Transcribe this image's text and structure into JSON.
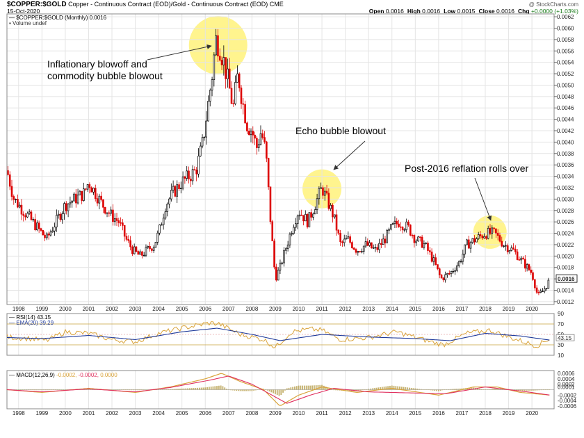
{
  "header": {
    "symbol": "$COPPER:$GOLD",
    "description": "Copper - Continuous Contract (EOD)/Gold - Continuous Contract (EOD) CME",
    "date": "15-Oct-2020",
    "watermark": "@ StockCharts.com",
    "ohlc": [
      {
        "key": "Open",
        "value": "0.0016"
      },
      {
        "key": "High",
        "value": "0.0016"
      },
      {
        "key": "Low",
        "value": "0.0015"
      },
      {
        "key": "Close",
        "value": "0.0016"
      },
      {
        "key": "Chg",
        "value": "+0.0000 (+1.03%)"
      }
    ]
  },
  "price_panel": {
    "legend_main": "$COPPER:$GOLD (Monthly) 0.0016",
    "legend_volume": "Volume undef",
    "last_value_label": "0.0016"
  },
  "rsi_panel": {
    "legend_rsi": "RSI(14) 43.15",
    "legend_ema": "EMA(20) 39.29",
    "value_label": "43.15",
    "ticks": [
      "90",
      "70",
      "50",
      "30",
      "10"
    ]
  },
  "macd_panel": {
    "legend_name": "MACD(12,26,9)",
    "legend_v1": "-0.0002,",
    "legend_v2": "-0.0002,",
    "legend_v3": "0.0000",
    "ticks": [
      "0.0006",
      "0.0004",
      "0.0002",
      "0.0001",
      "-0.0002",
      "-0.0004",
      "-0.0006"
    ]
  },
  "annotations": [
    {
      "id": "blowoff",
      "lines": [
        "Inflationary blowoff and",
        "commodity bubble blowout"
      ]
    },
    {
      "id": "echo",
      "lines": [
        "Echo bubble blowout"
      ]
    },
    {
      "id": "post2016",
      "lines": [
        "Post-2016 reflation rolls over"
      ]
    }
  ],
  "colors": {
    "up_candle": "#000000",
    "down_candle": "#dd0000",
    "highlight": "#fff27a",
    "ema_line": "#1f3a9a",
    "rsi_line": "#d9a33a",
    "macd_line": "#d9a33a",
    "signal_line": "#e0305f",
    "histogram": "#b8a050",
    "green_text": "#1a7a1a"
  },
  "chart_data": {
    "type": "candlestick",
    "x_axis_years": [
      "1998",
      "1999",
      "2000",
      "2001",
      "2002",
      "2003",
      "2004",
      "2005",
      "2006",
      "2007",
      "2008",
      "2009",
      "2010",
      "2011",
      "2012",
      "2013",
      "2014",
      "2015",
      "2016",
      "2017",
      "2018",
      "2019",
      "2020"
    ],
    "price_y_ticks": [
      "0.0062",
      "0.0060",
      "0.0058",
      "0.0056",
      "0.0054",
      "0.0052",
      "0.0050",
      "0.0048",
      "0.0046",
      "0.0044",
      "0.0042",
      "0.0040",
      "0.0038",
      "0.0036",
      "0.0034",
      "0.0032",
      "0.0030",
      "0.0028",
      "0.0026",
      "0.0024",
      "0.0022",
      "0.0020",
      "0.0018",
      "0.0016",
      "0.0014",
      "0.0012"
    ],
    "price_ylim": [
      0.00115,
      0.00625
    ],
    "price_path": [
      [
        1997.5,
        0.0035
      ],
      [
        1997.8,
        0.003
      ],
      [
        1998.0,
        0.0029
      ],
      [
        1998.4,
        0.0027
      ],
      [
        1998.8,
        0.0025
      ],
      [
        1999.2,
        0.0023
      ],
      [
        1999.6,
        0.0026
      ],
      [
        2000.0,
        0.0029
      ],
      [
        2000.4,
        0.003
      ],
      [
        2000.8,
        0.0031
      ],
      [
        2001.0,
        0.0033
      ],
      [
        2001.3,
        0.0031
      ],
      [
        2001.6,
        0.0029
      ],
      [
        2002.0,
        0.0027
      ],
      [
        2002.3,
        0.0026
      ],
      [
        2002.6,
        0.0023
      ],
      [
        2002.9,
        0.0021
      ],
      [
        2003.2,
        0.002
      ],
      [
        2003.5,
        0.0021
      ],
      [
        2003.8,
        0.0022
      ],
      [
        2004.0,
        0.0024
      ],
      [
        2004.3,
        0.0029
      ],
      [
        2004.6,
        0.0031
      ],
      [
        2005.0,
        0.0033
      ],
      [
        2005.3,
        0.0034
      ],
      [
        2005.6,
        0.0035
      ],
      [
        2005.9,
        0.004
      ],
      [
        2006.1,
        0.0046
      ],
      [
        2006.3,
        0.0052
      ],
      [
        2006.45,
        0.0058
      ],
      [
        2006.6,
        0.0057
      ],
      [
        2006.8,
        0.0054
      ],
      [
        2007.0,
        0.005
      ],
      [
        2007.2,
        0.0046
      ],
      [
        2007.4,
        0.0052
      ],
      [
        2007.6,
        0.0047
      ],
      [
        2007.8,
        0.0043
      ],
      [
        2008.0,
        0.0042
      ],
      [
        2008.2,
        0.0039
      ],
      [
        2008.4,
        0.0042
      ],
      [
        2008.6,
        0.0038
      ],
      [
        2008.8,
        0.0026
      ],
      [
        2009.0,
        0.0016
      ],
      [
        2009.2,
        0.0018
      ],
      [
        2009.5,
        0.0022
      ],
      [
        2009.8,
        0.0026
      ],
      [
        2010.0,
        0.0028
      ],
      [
        2010.4,
        0.0026
      ],
      [
        2010.7,
        0.0029
      ],
      [
        2011.0,
        0.0032
      ],
      [
        2011.2,
        0.003
      ],
      [
        2011.5,
        0.0027
      ],
      [
        2011.8,
        0.0022
      ],
      [
        2012.1,
        0.0023
      ],
      [
        2012.5,
        0.0021
      ],
      [
        2012.9,
        0.0022
      ],
      [
        2013.3,
        0.0021
      ],
      [
        2013.7,
        0.0023
      ],
      [
        2014.0,
        0.0025
      ],
      [
        2014.3,
        0.0026
      ],
      [
        2014.7,
        0.0025
      ],
      [
        2015.0,
        0.0023
      ],
      [
        2015.4,
        0.0022
      ],
      [
        2015.8,
        0.0019
      ],
      [
        2016.1,
        0.0016
      ],
      [
        2016.5,
        0.0017
      ],
      [
        2016.9,
        0.0019
      ],
      [
        2017.2,
        0.0022
      ],
      [
        2017.6,
        0.0023
      ],
      [
        2018.0,
        0.0024
      ],
      [
        2018.4,
        0.0024
      ],
      [
        2018.8,
        0.0022
      ],
      [
        2019.2,
        0.0021
      ],
      [
        2019.6,
        0.0019
      ],
      [
        2020.0,
        0.0017
      ],
      [
        2020.25,
        0.0013
      ],
      [
        2020.5,
        0.0014
      ],
      [
        2020.79,
        0.0016
      ]
    ],
    "rsi_ylim": [
      10,
      90
    ],
    "rsi_path": [
      [
        1997.5,
        45
      ],
      [
        1998.5,
        42
      ],
      [
        1999.2,
        38
      ],
      [
        2000.0,
        55
      ],
      [
        2001.0,
        52
      ],
      [
        2002.0,
        40
      ],
      [
        2003.0,
        36
      ],
      [
        2004.0,
        52
      ],
      [
        2005.0,
        62
      ],
      [
        2006.2,
        72
      ],
      [
        2006.6,
        70
      ],
      [
        2007.5,
        50
      ],
      [
        2008.5,
        40
      ],
      [
        2009.0,
        25
      ],
      [
        2009.7,
        55
      ],
      [
        2010.5,
        60
      ],
      [
        2011.0,
        58
      ],
      [
        2011.8,
        40
      ],
      [
        2013.0,
        44
      ],
      [
        2014.2,
        55
      ],
      [
        2015.5,
        38
      ],
      [
        2016.2,
        30
      ],
      [
        2017.2,
        52
      ],
      [
        2018.2,
        58
      ],
      [
        2019.0,
        45
      ],
      [
        2020.2,
        28
      ],
      [
        2020.79,
        43
      ]
    ],
    "ema_path": [
      [
        1997.5,
        44
      ],
      [
        1999.0,
        42
      ],
      [
        2001.0,
        48
      ],
      [
        2003.0,
        40
      ],
      [
        2005.0,
        55
      ],
      [
        2006.5,
        62
      ],
      [
        2008.0,
        50
      ],
      [
        2009.2,
        38
      ],
      [
        2011.0,
        50
      ],
      [
        2013.0,
        45
      ],
      [
        2015.0,
        42
      ],
      [
        2016.5,
        38
      ],
      [
        2018.0,
        52
      ],
      [
        2019.5,
        47
      ],
      [
        2020.79,
        39
      ]
    ],
    "macd_ylim": [
      -0.0007,
      0.0007
    ],
    "macd_path": [
      [
        1997.5,
        0.0
      ],
      [
        1999.0,
        -0.0001
      ],
      [
        2001.0,
        5e-05
      ],
      [
        2003.0,
        -0.0001
      ],
      [
        2004.5,
        0.0001
      ],
      [
        2006.0,
        0.0004
      ],
      [
        2006.7,
        0.0006
      ],
      [
        2007.5,
        0.0003
      ],
      [
        2008.5,
        0.0
      ],
      [
        2009.2,
        -0.0006
      ],
      [
        2010.0,
        -0.0002
      ],
      [
        2011.0,
        0.0001
      ],
      [
        2012.5,
        -0.0001
      ],
      [
        2014.0,
        5e-05
      ],
      [
        2016.0,
        -0.0002
      ],
      [
        2017.5,
        0.0001
      ],
      [
        2018.5,
        0.0001
      ],
      [
        2019.5,
        -0.0001
      ],
      [
        2020.79,
        -0.0002
      ]
    ],
    "signal_path": [
      [
        1997.5,
        0.0
      ],
      [
        1999.0,
        -8e-05
      ],
      [
        2001.0,
        3e-05
      ],
      [
        2003.0,
        -8e-05
      ],
      [
        2004.5,
        8e-05
      ],
      [
        2006.2,
        0.00035
      ],
      [
        2007.0,
        0.0005
      ],
      [
        2008.0,
        0.0002
      ],
      [
        2009.5,
        -0.0005
      ],
      [
        2010.5,
        -0.0002
      ],
      [
        2011.5,
        5e-05
      ],
      [
        2013.0,
        -8e-05
      ],
      [
        2016.3,
        -0.00015
      ],
      [
        2018.0,
        0.0001
      ],
      [
        2019.8,
        -8e-05
      ],
      [
        2020.79,
        -0.0002
      ]
    ]
  }
}
